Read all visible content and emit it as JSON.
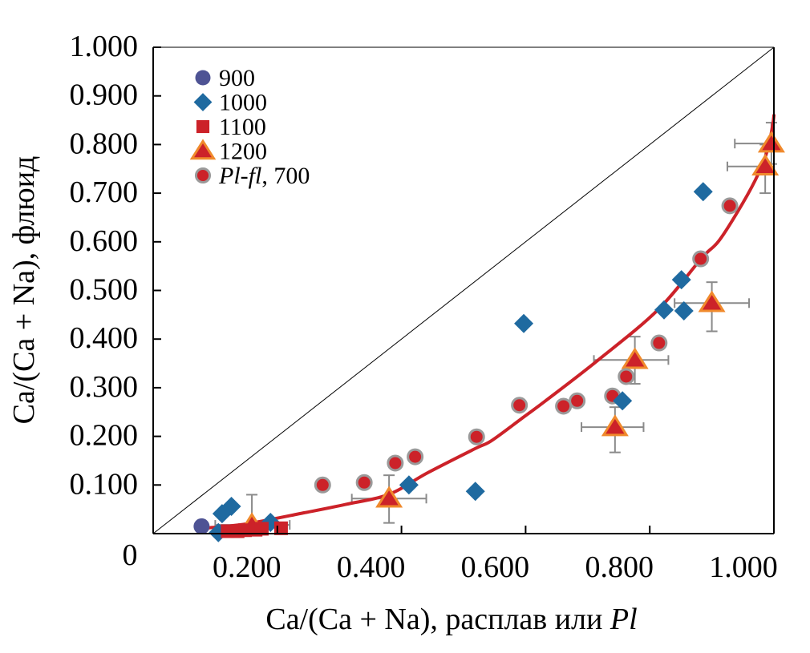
{
  "chart_data": {
    "type": "scatter",
    "title": "",
    "xlabel": {
      "prefix": "Ca/(Ca + Na), расплав или ",
      "italic": "Pl"
    },
    "ylabel": "Ca/(Ca + Na), флюид",
    "xlim": [
      0,
      1.0
    ],
    "ylim": [
      0,
      1.0
    ],
    "origin_label": "0",
    "x_ticks": [
      0.2,
      0.4,
      0.6,
      0.8,
      1.0
    ],
    "x_tick_labels": [
      "0.200",
      "0.400",
      "0.600",
      "0.800",
      "1.000"
    ],
    "y_ticks": [
      0.1,
      0.2,
      0.3,
      0.4,
      0.5,
      0.6,
      0.7,
      0.8,
      0.9,
      1.0
    ],
    "y_tick_labels": [
      "0.100",
      "0.200",
      "0.300",
      "0.400",
      "0.500",
      "0.600",
      "0.700",
      "0.800",
      "0.900",
      "1.000"
    ],
    "grid": false,
    "legend_position": "top-left",
    "reference_line": {
      "name": "1:1 line",
      "points": [
        [
          0,
          0
        ],
        [
          1,
          1
        ]
      ],
      "color": "#000000"
    },
    "series": [
      {
        "name": "900",
        "marker": "circle",
        "color": "#4e5394",
        "points": [
          [
            0.078,
            0.015
          ]
        ]
      },
      {
        "name": "1000",
        "marker": "diamond",
        "color": "#1f6aa0",
        "points": [
          [
            0.105,
            0.002
          ],
          [
            0.111,
            0.041
          ],
          [
            0.126,
            0.056
          ],
          [
            0.189,
            0.023
          ],
          [
            0.412,
            0.1
          ],
          [
            0.519,
            0.087
          ],
          [
            0.597,
            0.432
          ],
          [
            0.756,
            0.273
          ],
          [
            0.823,
            0.46
          ],
          [
            0.851,
            0.522
          ],
          [
            0.855,
            0.458
          ],
          [
            0.886,
            0.703
          ]
        ]
      },
      {
        "name": "1100",
        "marker": "square",
        "color": "#cc2229",
        "points": [
          [
            0.12,
            0.005
          ],
          [
            0.136,
            0.005
          ],
          [
            0.148,
            0.007
          ],
          [
            0.165,
            0.008
          ],
          [
            0.175,
            0.01
          ],
          [
            0.206,
            0.011
          ]
        ]
      },
      {
        "name": "1200",
        "marker": "triangle",
        "color": "#cc2229",
        "stroke": "#f08a2c",
        "points": [
          [
            0.159,
            0.018
          ],
          [
            0.38,
            0.072
          ],
          [
            0.744,
            0.219
          ],
          [
            0.776,
            0.357
          ],
          [
            0.9,
            0.474
          ],
          [
            0.986,
            0.755
          ],
          [
            0.996,
            0.802
          ]
        ],
        "x_error": [
          [
            0.1,
            0.22
          ],
          [
            0.32,
            0.44
          ],
          [
            0.69,
            0.79
          ],
          [
            0.71,
            0.83
          ],
          [
            0.84,
            0.96
          ],
          [
            0.925,
            1.0
          ],
          [
            0.937,
            1.0
          ]
        ],
        "y_error": [
          [
            0.0,
            0.08
          ],
          [
            0.022,
            0.12
          ],
          [
            0.167,
            0.26
          ],
          [
            0.308,
            0.405
          ],
          [
            0.416,
            0.517
          ],
          [
            0.7,
            0.8
          ],
          [
            0.76,
            0.845
          ]
        ]
      },
      {
        "name": "Pl-fl, 700",
        "label_italic": "Pl-fl",
        "label_rest": ", 700",
        "marker": "circle-outlined",
        "color": "#cc2229",
        "stroke": "#9a9a9a",
        "points": [
          [
            0.273,
            0.1
          ],
          [
            0.34,
            0.105
          ],
          [
            0.39,
            0.145
          ],
          [
            0.422,
            0.158
          ],
          [
            0.521,
            0.199
          ],
          [
            0.59,
            0.264
          ],
          [
            0.661,
            0.262
          ],
          [
            0.683,
            0.273
          ],
          [
            0.74,
            0.283
          ],
          [
            0.762,
            0.323
          ],
          [
            0.815,
            0.392
          ],
          [
            0.882,
            0.565
          ],
          [
            0.929,
            0.674
          ]
        ]
      }
    ],
    "trend_curve": {
      "name": "fit curve",
      "color": "#cc2229",
      "points": [
        [
          0.09,
          0.012
        ],
        [
          0.15,
          0.02
        ],
        [
          0.244,
          0.043
        ],
        [
          0.31,
          0.06
        ],
        [
          0.38,
          0.081
        ],
        [
          0.442,
          0.125
        ],
        [
          0.519,
          0.175
        ],
        [
          0.545,
          0.191
        ],
        [
          0.593,
          0.236
        ],
        [
          0.632,
          0.273
        ],
        [
          0.716,
          0.356
        ],
        [
          0.813,
          0.46
        ],
        [
          0.884,
          0.567
        ],
        [
          0.912,
          0.603
        ],
        [
          0.95,
          0.68
        ],
        [
          0.975,
          0.74
        ],
        [
          0.99,
          0.79
        ],
        [
          0.998,
          0.84
        ],
        [
          1.0,
          0.86
        ]
      ]
    }
  }
}
